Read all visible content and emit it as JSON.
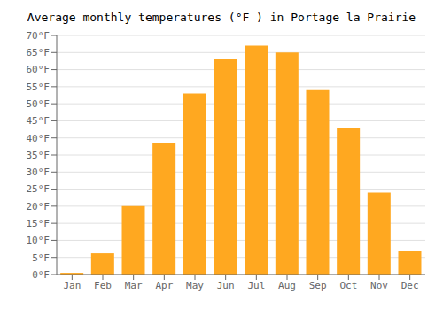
{
  "chart_data": {
    "type": "bar",
    "title": "Average monthly temperatures (°F ) in Portage la Prairie",
    "categories": [
      "Jan",
      "Feb",
      "Mar",
      "Apr",
      "May",
      "Jun",
      "Jul",
      "Aug",
      "Sep",
      "Oct",
      "Nov",
      "Dec"
    ],
    "values": [
      0.5,
      6.2,
      20.0,
      38.5,
      53.0,
      63.0,
      67.0,
      65.0,
      54.0,
      43.0,
      24.0,
      7.0
    ],
    "color": "#FFA820",
    "ylim": [
      0,
      70
    ],
    "yticks": [
      {
        "value": 0,
        "label": "0°F"
      },
      {
        "value": 5,
        "label": "5°F"
      },
      {
        "value": 10,
        "label": "10°F"
      },
      {
        "value": 15,
        "label": "15°F"
      },
      {
        "value": 20,
        "label": "20°F"
      },
      {
        "value": 25,
        "label": "25°F"
      },
      {
        "value": 30,
        "label": "30°F"
      },
      {
        "value": 35,
        "label": "35°F"
      },
      {
        "value": 40,
        "label": "40°F"
      },
      {
        "value": 45,
        "label": "45°F"
      },
      {
        "value": 50,
        "label": "50°F"
      },
      {
        "value": 55,
        "label": "55°F"
      },
      {
        "value": 60,
        "label": "60°F"
      },
      {
        "value": 65,
        "label": "65°F"
      },
      {
        "value": 70,
        "label": "70°F"
      }
    ],
    "grid": true
  }
}
